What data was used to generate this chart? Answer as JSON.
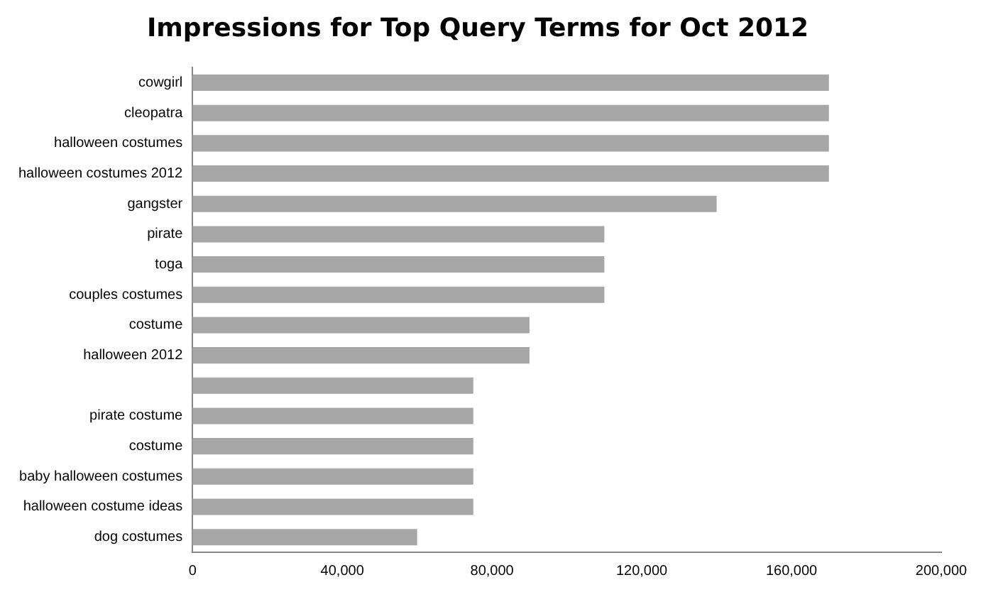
{
  "chart_data": {
    "type": "bar",
    "orientation": "horizontal",
    "title": "Impressions for Top Query Terms for Oct 2012",
    "categories": [
      "cowgirl",
      "cleopatra",
      "halloween costumes",
      "halloween costumes 2012",
      "gangster",
      "pirate",
      "toga",
      "couples costumes",
      "costume",
      "halloween 2012",
      null,
      "pirate costume",
      "costume",
      "baby halloween costumes",
      "halloween costume ideas",
      "dog costumes"
    ],
    "values": [
      170000,
      170000,
      170000,
      170000,
      140000,
      110000,
      110000,
      110000,
      90000,
      90000,
      75000,
      75000,
      75000,
      75000,
      75000,
      60000
    ],
    "color": "#a6a6a6",
    "xlim": [
      0,
      200000
    ],
    "xticks": [
      {
        "value": 0,
        "label": "0"
      },
      {
        "value": 40000,
        "label": "40,000"
      },
      {
        "value": 80000,
        "label": "80,000"
      },
      {
        "value": 120000,
        "label": "120,000"
      },
      {
        "value": 160000,
        "label": "160,000"
      },
      {
        "value": 200000,
        "label": "200,000"
      }
    ],
    "grid": false,
    "legend": false
  }
}
